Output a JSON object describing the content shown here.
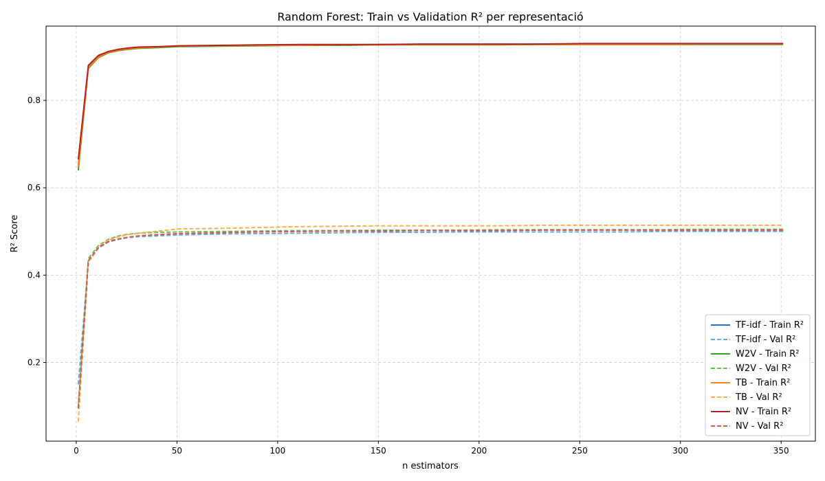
{
  "chart_data": {
    "type": "line",
    "title": "Random Forest: Train vs Validation R² per representació",
    "xlabel": "n estimators",
    "ylabel": "R² Score",
    "xlim": [
      -15,
      367
    ],
    "ylim": [
      0.02,
      0.97
    ],
    "xticks": [
      0,
      50,
      100,
      150,
      200,
      250,
      300,
      350
    ],
    "yticks": [
      0.2,
      0.4,
      0.6,
      0.8
    ],
    "grid": true,
    "legend_position": "lower-right",
    "x": [
      1,
      6,
      11,
      16,
      21,
      26,
      31,
      41,
      51,
      71,
      91,
      111,
      131,
      151,
      171,
      191,
      211,
      231,
      251,
      271,
      291,
      311,
      331,
      351
    ],
    "series": [
      {
        "name": "TF-idf - Train R²",
        "color": "#1f77b4",
        "dash": "solid",
        "values": [
          0.652,
          0.875,
          0.9,
          0.91,
          0.915,
          0.918,
          0.92,
          0.922,
          0.924,
          0.925,
          0.926,
          0.927,
          0.927,
          0.928,
          0.928,
          0.928,
          0.928,
          0.929,
          0.929,
          0.929,
          0.929,
          0.929,
          0.929,
          0.929
        ]
      },
      {
        "name": "TF-idf - Val R²",
        "color": "#66aadd",
        "dash": "dashed",
        "values": [
          0.15,
          0.43,
          0.462,
          0.476,
          0.482,
          0.486,
          0.488,
          0.49,
          0.492,
          0.494,
          0.495,
          0.496,
          0.497,
          0.498,
          0.498,
          0.499,
          0.499,
          0.499,
          0.499,
          0.499,
          0.5,
          0.5,
          0.5,
          0.5
        ]
      },
      {
        "name": "W2V - Train R²",
        "color": "#2ca02c",
        "dash": "solid",
        "values": [
          0.64,
          0.873,
          0.898,
          0.909,
          0.914,
          0.917,
          0.919,
          0.921,
          0.923,
          0.924,
          0.925,
          0.926,
          0.926,
          0.927,
          0.927,
          0.927,
          0.927,
          0.928,
          0.928,
          0.928,
          0.928,
          0.928,
          0.928,
          0.928
        ]
      },
      {
        "name": "W2V - Val R²",
        "color": "#6bbf59",
        "dash": "dashed",
        "values": [
          0.1,
          0.438,
          0.468,
          0.482,
          0.49,
          0.494,
          0.496,
          0.498,
          0.499,
          0.5,
          0.501,
          0.502,
          0.502,
          0.503,
          0.503,
          0.503,
          0.504,
          0.504,
          0.504,
          0.504,
          0.504,
          0.505,
          0.505,
          0.505
        ]
      },
      {
        "name": "TB - Train R²",
        "color": "#ff7f0e",
        "dash": "solid",
        "values": [
          0.648,
          0.874,
          0.899,
          0.91,
          0.915,
          0.918,
          0.92,
          0.922,
          0.924,
          0.925,
          0.926,
          0.926,
          0.927,
          0.927,
          0.928,
          0.928,
          0.928,
          0.928,
          0.928,
          0.928,
          0.928,
          0.929,
          0.929,
          0.929
        ]
      },
      {
        "name": "TB - Val R²",
        "color": "#ffad4a",
        "dash": "dashed",
        "values": [
          0.065,
          0.43,
          0.465,
          0.48,
          0.488,
          0.493,
          0.496,
          0.501,
          0.506,
          0.507,
          0.509,
          0.511,
          0.512,
          0.513,
          0.513,
          0.513,
          0.513,
          0.514,
          0.514,
          0.514,
          0.514,
          0.514,
          0.514,
          0.514
        ]
      },
      {
        "name": "NV - Train R²",
        "color": "#b22222",
        "dash": "solid",
        "values": [
          0.665,
          0.88,
          0.903,
          0.912,
          0.917,
          0.92,
          0.922,
          0.923,
          0.925,
          0.926,
          0.927,
          0.928,
          0.928,
          0.928,
          0.929,
          0.929,
          0.929,
          0.929,
          0.93,
          0.93,
          0.93,
          0.93,
          0.93,
          0.93
        ]
      },
      {
        "name": "NV - Val R²",
        "color": "#d9534f",
        "dash": "dashed",
        "values": [
          0.095,
          0.433,
          0.463,
          0.477,
          0.483,
          0.487,
          0.49,
          0.493,
          0.495,
          0.497,
          0.499,
          0.5,
          0.501,
          0.501,
          0.502,
          0.502,
          0.502,
          0.503,
          0.503,
          0.503,
          0.503,
          0.503,
          0.503,
          0.503
        ]
      }
    ]
  }
}
